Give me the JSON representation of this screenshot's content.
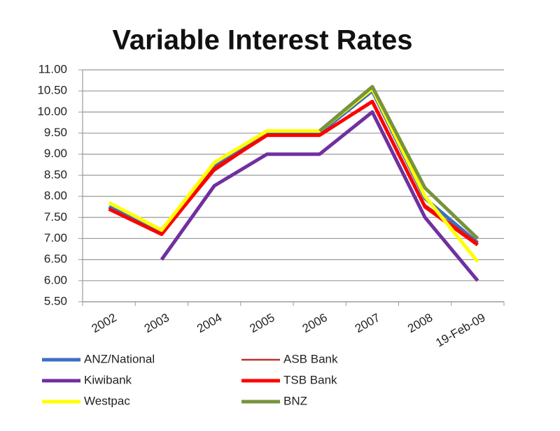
{
  "chart_data": {
    "type": "line",
    "title": "Variable Interest Rates",
    "categories": [
      "2002",
      "2003",
      "2004",
      "2005",
      "2006",
      "2007",
      "2008",
      "19-Feb-09"
    ],
    "ylim": [
      5.5,
      11
    ],
    "yticks": [
      {
        "value": 5.5,
        "label": "5.50"
      },
      {
        "value": 6,
        "label": "6.00"
      },
      {
        "value": 6.5,
        "label": "6.50"
      },
      {
        "value": 7,
        "label": "7.00"
      },
      {
        "value": 7.5,
        "label": "7.50"
      },
      {
        "value": 8,
        "label": "8.00"
      },
      {
        "value": 8.5,
        "label": "8.50"
      },
      {
        "value": 9,
        "label": "9.00"
      },
      {
        "value": 9.5,
        "label": "9.50"
      },
      {
        "value": 10,
        "label": "10.00"
      },
      {
        "value": 10.5,
        "label": "10.50"
      },
      {
        "value": 11,
        "label": "11.00"
      }
    ],
    "grid": true,
    "legend": "bottom",
    "series": [
      {
        "name": "ANZ/National",
        "color": "#3b6fc4",
        "values": [
          7.75,
          7.15,
          8.7,
          9.5,
          9.5,
          10.5,
          7.95,
          6.9
        ]
      },
      {
        "name": "ASB Bank",
        "color": "#c0302a",
        "values": [
          7.7,
          7.1,
          8.6,
          9.45,
          9.45,
          10.25,
          7.8,
          6.9
        ]
      },
      {
        "name": "Kiwibank",
        "color": "#7030a0",
        "values": [
          null,
          6.5,
          8.25,
          9.0,
          9.0,
          10.0,
          7.5,
          6.0
        ]
      },
      {
        "name": "TSB Bank",
        "color": "#ff0000",
        "values": [
          7.7,
          7.1,
          8.65,
          9.45,
          9.45,
          10.25,
          7.75,
          6.85
        ]
      },
      {
        "name": "Westpac",
        "color": "#ffff00",
        "values": [
          7.85,
          7.2,
          8.8,
          9.55,
          9.55,
          10.55,
          8.0,
          6.45
        ]
      },
      {
        "name": "BNZ",
        "color": "#77933c",
        "values": [
          null,
          null,
          null,
          null,
          9.55,
          10.6,
          8.2,
          7.0
        ]
      }
    ]
  }
}
